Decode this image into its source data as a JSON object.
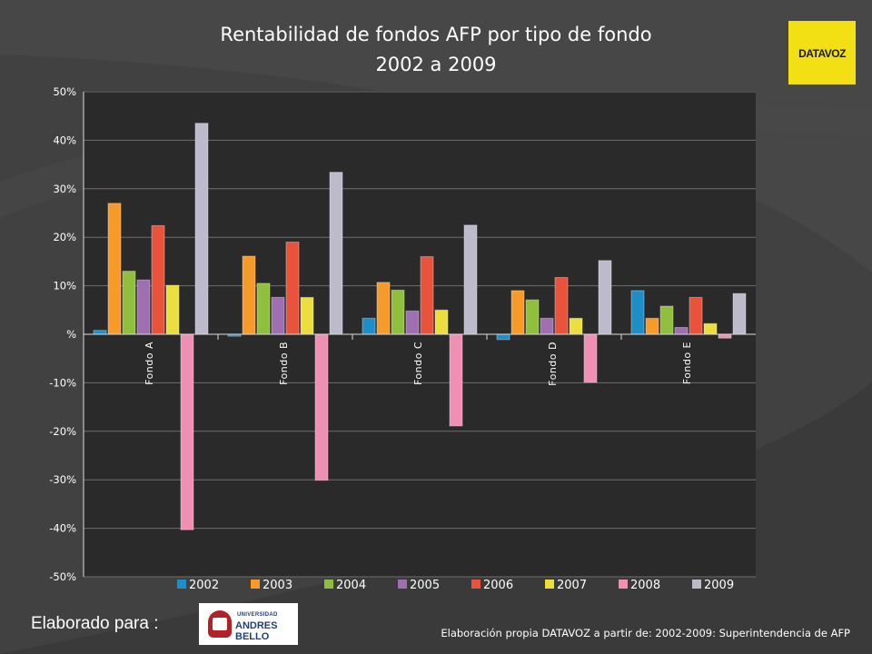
{
  "slide": {
    "footer_label": "Elaborado para :",
    "footer_source": "Elaboración propia DATAVOZ a partir de: 2002-2009: Superintendencia de AFP",
    "logo_text": "DATAVOZ",
    "partner_logo_line1": "UNIVERSIDAD",
    "partner_logo_line2": "ANDRES BELLO",
    "logo_color": "#f2df14",
    "background_color": "#414141"
  },
  "chart_data": {
    "type": "bar",
    "title": "Rentabilidad de fondos AFP por tipo de fondo",
    "subtitle": "2002 a 2009",
    "categories": [
      "Fondo A",
      "Fondo B",
      "Fondo C",
      "Fondo D",
      "Fondo E"
    ],
    "yticks": [
      "50%",
      "40%",
      "30%",
      "20%",
      "10%",
      "%",
      "-10%",
      "-20%",
      "-30%",
      "-40%",
      "-50%"
    ],
    "ylim": [
      -50,
      50
    ],
    "grid": true,
    "legend": "bottom",
    "series": [
      {
        "name": "2002",
        "color": "#1e8ec9",
        "values": [
          0.8,
          -0.4,
          3.3,
          -1.1,
          9.0
        ]
      },
      {
        "name": "2003",
        "color": "#f69a2a",
        "values": [
          27.0,
          16.1,
          10.7,
          9.0,
          3.3
        ]
      },
      {
        "name": "2004",
        "color": "#8fbf3c",
        "values": [
          13.0,
          10.5,
          9.1,
          7.1,
          5.8
        ]
      },
      {
        "name": "2005",
        "color": "#9f6fb1",
        "values": [
          11.2,
          7.6,
          4.8,
          3.3,
          1.4
        ]
      },
      {
        "name": "2006",
        "color": "#e9533b",
        "values": [
          22.4,
          19.0,
          16.0,
          11.7,
          7.6
        ]
      },
      {
        "name": "2007",
        "color": "#ecde3e",
        "values": [
          10.1,
          7.6,
          5.0,
          3.3,
          2.2
        ]
      },
      {
        "name": "2008",
        "color": "#ef8fb4",
        "values": [
          -40.3,
          -30.1,
          -18.9,
          -9.9,
          -0.8
        ]
      },
      {
        "name": "2009",
        "color": "#bdbacb",
        "values": [
          43.5,
          33.4,
          22.5,
          15.2,
          8.4
        ]
      }
    ]
  }
}
